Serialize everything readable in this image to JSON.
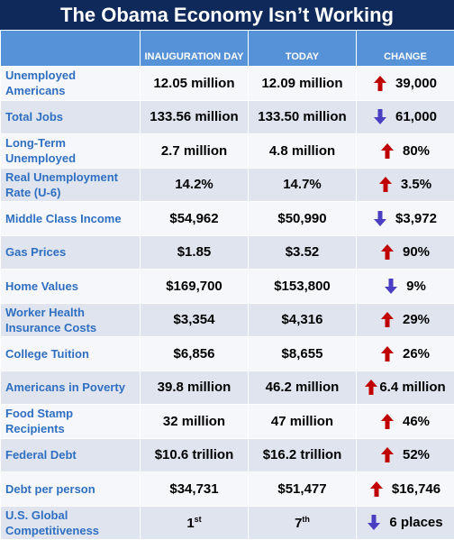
{
  "title": "The Obama Economy Isn’t Working",
  "table": {
    "header": [
      "INAUGURATION DAY",
      "TODAY",
      "CHANGE"
    ],
    "rows": [
      [
        [
          "Unemployed",
          "Americans"
        ],
        "12.05 million",
        "12.09 million",
        "39,000"
      ],
      [
        [
          "Total Jobs"
        ],
        "133.56 million",
        "133.50 million",
        "61,000"
      ],
      [
        [
          "Long-Term",
          "Unemployed"
        ],
        "2.7 million",
        "4.8 million",
        "80%"
      ],
      [
        [
          "Real Unemployment",
          "Rate (U-6)"
        ],
        "14.2%",
        "14.7%",
        "3.5%"
      ],
      [
        [
          "Middle Class Income"
        ],
        "$54,962",
        "$50,990",
        "$3,972"
      ],
      [
        [
          "Gas Prices"
        ],
        "$1.85",
        "$3.52",
        "90%"
      ],
      [
        [
          "Home Values"
        ],
        "$169,700",
        "$153,800",
        "9%"
      ],
      [
        [
          "Worker Health",
          "Insurance Costs"
        ],
        "$3,354",
        "$4,316",
        "29%"
      ],
      [
        [
          "College Tuition"
        ],
        "$6,856",
        "$8,655",
        "26%"
      ],
      [
        [
          "Americans in Poverty"
        ],
        "39.8 million",
        "46.2 million",
        "6.4 million"
      ],
      [
        [
          "Food Stamp",
          "Recipients"
        ],
        "32 million",
        "47 million",
        "46%"
      ],
      [
        [
          "Federal Debt"
        ],
        "$10.6 trillion",
        "$16.2 trillion",
        "52%"
      ],
      [
        [
          "Debt per person"
        ],
        "$34,731",
        "$51,477",
        "$16,746"
      ],
      [
        [
          "U.S. Global",
          "Competitiveness"
        ],
        {
          "text": "1",
          "sup": "st"
        },
        {
          "text": "7",
          "sup": "th"
        },
        "6 places"
      ]
    ]
  }
}
